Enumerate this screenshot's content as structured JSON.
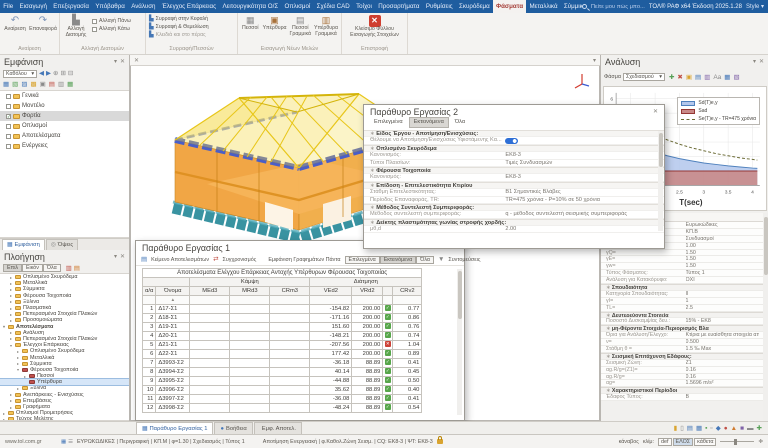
{
  "app": {
    "search_placeholder": "Πείτε μου πώς μπο...",
    "title": "ΤΟΛ® ΡΑΦ x64 Έκδοση 2025.1.28",
    "style_label": "Style ▾"
  },
  "menu": {
    "items": [
      {
        "t": "File"
      },
      {
        "t": "Εισαγωγή"
      },
      {
        "t": "Επεξεργασία"
      },
      {
        "t": "Υπόβαθρα"
      },
      {
        "t": "Ανάλυση"
      },
      {
        "t": "Έλεγχος Επάρκειας"
      },
      {
        "t": "Λειτουργικότητα Ο/Σ"
      },
      {
        "t": "Οπλισμοί"
      },
      {
        "t": "Σχέδια CAD"
      },
      {
        "t": "Τοίχοι"
      },
      {
        "t": "Προσαρτήματα"
      },
      {
        "t": "Ρυθμίσεις"
      },
      {
        "t": "Σκυρόδεμα"
      },
      {
        "t": "Φάσματα",
        "cls": "act"
      },
      {
        "t": "Μεταλλικά"
      },
      {
        "t": "Σύμμικτα"
      },
      {
        "t": "Ξύλινα"
      }
    ]
  },
  "ribbon": {
    "g1": "Αναίρεση",
    "undo": "Αναίρεση",
    "redo": "Επαναφορά",
    "g2": "Αλλαγή Διατομών",
    "big2": "Αλλαγή Διατομής",
    "chk_up": "Αλλαγή Πάνω",
    "chk_dn": "Αλλαγή Κάτω",
    "g3": "Συρραφή/Πεσσών",
    "stitch": [
      {
        "t": "Συρραφή στην Κεφαλή"
      },
      {
        "t": "Συρραφή & Θεμελίωση"
      },
      {
        "t": "Κλειδιά και στο πέρας",
        "cls": "dim"
      }
    ],
    "g4": "Εισαγωγή Νέων Μελών",
    "members": [
      {
        "t": "Πεσσοί",
        "ic": "▦",
        "icls": "ic-gr"
      },
      {
        "t": "Υπέρθυρα",
        "ic": "▣",
        "icls": "ic-br"
      },
      {
        "t": "Πεσσοί Γραμμικά",
        "ic": "▤",
        "icls": "ic-gr"
      },
      {
        "t": "Υπέρθυρα Γραμμικά",
        "ic": "▥",
        "icls": "ic-br"
      }
    ],
    "g5": "Επιστροφή",
    "close_label": "Κλείσιμο Φύλλου Εισαγωγής Στοιχείων"
  },
  "display_panel": {
    "title": "Εμφάνιση",
    "filter_value": "Καθόλου",
    "tb1_icons": [
      {
        "g": "◀",
        "cls": "ic-b"
      },
      {
        "g": "▶",
        "cls": "ic-b"
      },
      {
        "g": "⊕",
        "cls": "ic-gr"
      },
      {
        "g": "⊞",
        "cls": "ic-gr"
      },
      {
        "g": "⊟",
        "cls": "ic-gr"
      }
    ],
    "tb2_icons": [
      {
        "g": "▦",
        "cls": "ic-b"
      },
      {
        "g": "▧",
        "cls": "ic-g"
      },
      {
        "g": "▨",
        "cls": "ic-b"
      },
      {
        "g": "▩",
        "cls": "ic-y"
      },
      {
        "g": "▣",
        "cls": "ic-gr"
      },
      {
        "g": "▤",
        "cls": "ic-r"
      },
      {
        "g": "▥",
        "cls": "ic-gr"
      },
      {
        "g": "▦",
        "cls": "ic-g"
      }
    ],
    "tree": [
      {
        "t": "Γενικά"
      },
      {
        "t": "Μοντέλο"
      },
      {
        "t": "Φορτία",
        "cls": "hl",
        "ck": "ck"
      },
      {
        "t": "Οπλισμοί"
      },
      {
        "t": "Αποτελέσματα"
      },
      {
        "t": "Ενέργειες"
      }
    ],
    "tabs": [
      {
        "t": "Εμφάνιση",
        "cls": "on",
        "ig": "▦",
        "icls": "ic-b"
      },
      {
        "t": "Όψεις",
        "ig": "◎",
        "icls": "ic-gr"
      }
    ]
  },
  "navigation_panel": {
    "title": "Πλοήγηση",
    "filters": [
      {
        "t": "Επιλ",
        "cls": "on"
      },
      {
        "t": "Εικόν"
      },
      {
        "t": "Όλα"
      }
    ],
    "tb_icons": [
      {
        "g": "▥",
        "cls": "ic-r"
      },
      {
        "g": "▤",
        "cls": "ic-o"
      }
    ],
    "tree": [
      {
        "a": "▸",
        "t": "Οπλισμένο Σκυρόδεμα",
        "cls": "d1"
      },
      {
        "a": "▸",
        "t": "Μεταλλικά",
        "cls": "d1"
      },
      {
        "a": "▸",
        "t": "Σύμμικτα",
        "cls": "d1"
      },
      {
        "a": "▸",
        "t": "Φέρουσα Τοιχοποιία",
        "cls": "d1"
      },
      {
        "a": "▸",
        "t": "Ξύλινα",
        "cls": "d1"
      },
      {
        "a": "▸",
        "t": "Πλασματικά",
        "cls": "d1"
      },
      {
        "a": "▸",
        "t": "Πεπερασμένα Στοιχεία Πλακών",
        "cls": "d1"
      },
      {
        "a": "▸",
        "t": "Προσομοιώματα",
        "cls": "d1"
      },
      {
        "a": "▾",
        "t": "Αποτελέσματα",
        "cls": "d0 bld"
      },
      {
        "a": "▸",
        "t": "Ανάλυση",
        "cls": "d1"
      },
      {
        "a": "▸",
        "t": "Πεπερασμένα Στοιχεία Πλακών",
        "cls": "d1"
      },
      {
        "a": "▾",
        "t": "Έλεγχοι Επάρκειας",
        "cls": "d1"
      },
      {
        "a": "▸",
        "t": "Οπλισμένο Σκυρόδεμα",
        "cls": "d2"
      },
      {
        "a": "▸",
        "t": "Μεταλλικά",
        "cls": "d2"
      },
      {
        "a": "▸",
        "t": "Σύμμικτα",
        "cls": "d2"
      },
      {
        "a": "▾",
        "t": "Φέρουσα Τοιχοποιία",
        "cls": "d2",
        "fcls": "red"
      },
      {
        "a": "▸",
        "t": "Πεσσοί",
        "cls": "d3",
        "fcls": "red"
      },
      {
        "a": "",
        "t": "Υπέρθυρα",
        "cls": "d3 sel",
        "fcls": "red"
      },
      {
        "a": "▸",
        "t": "Ξύλινα",
        "cls": "d2"
      },
      {
        "a": "▸",
        "t": "Ανεπάρκειες - Ενισχύσεις",
        "cls": "d1"
      },
      {
        "a": "▸",
        "t": "Επεμβάσεις",
        "cls": "d1"
      },
      {
        "a": "▸",
        "t": "Γραφήματα",
        "cls": "d1"
      },
      {
        "a": "▸",
        "t": "Οπλισμοί Προμετρήσεις",
        "cls": "d0"
      },
      {
        "a": "▸",
        "t": "Τεύχος Μελέτης",
        "cls": "d0"
      }
    ]
  },
  "window2": {
    "title": "Παράθυρο Εργασίας 2",
    "tabs": [
      {
        "t": "Επιλεγμένα"
      },
      {
        "t": "Εκτεινόμενα",
        "cls": "on"
      },
      {
        "t": "Όλα"
      }
    ],
    "rows": [
      {
        "l": "Είδος Έργου - Αποτίμηση/Ενισχύσεις:",
        "v": "",
        "cls": "sec"
      },
      {
        "l": "Θέλουμε να Αποτίμηση/Ενισχύσεις Υφιστάμενης Κα...",
        "v": "",
        "cls": "tgl"
      },
      {
        "l": "Οπλισμένο Σκυρόδεμα",
        "v": "",
        "cls": "sec"
      },
      {
        "l": "Κανονισμός:",
        "v": "ΕΚ8-3"
      },
      {
        "l": "Τύποι Πλαισίων:",
        "v": "Τιμές Συνδυασμών"
      },
      {
        "l": "Φέρουσα Τοιχοποιία",
        "v": "",
        "cls": "sec"
      },
      {
        "l": "Κανονισμός:",
        "v": "ΕΚ8-3"
      },
      {
        "l": "Επίδοση - Επιτελεστικότητα Κτιρίου",
        "v": "",
        "cls": "sec"
      },
      {
        "l": "Στάθμη Επιτελεστικότητας:",
        "v": "Β1 Σημαντικές Βλάβες"
      },
      {
        "l": "Περίοδος Επαναφοράς, TR:",
        "v": "TR=475 χρόνια - P=10% σε 50 χρόνια"
      },
      {
        "l": "Μέθοδος Συντελεστή Συμπεριφοράς:",
        "v": "",
        "cls": "sec"
      },
      {
        "l": "Μέθοδος συντελεστή συμπεριφοράς:",
        "v": "q - μέθοδος συντελεστή σεισμικής συμπεριφοράς"
      },
      {
        "l": "Δείκτης πλαστιμότητας γωνίας στροφής χορδής:",
        "v": "",
        "cls": "sec"
      },
      {
        "l": "μθ,d",
        "v": "2.00"
      }
    ]
  },
  "window1": {
    "title": "Παράθυρο Εργασίας 1",
    "toolbar": {
      "results": "Κείμενο Αποτελεσμάτων",
      "sync": "Συγχρονισμός",
      "always": "Εμφάνιση Γραφημάτων Πάντα",
      "shortcuts": "Συντομεύσεις"
    },
    "tabs": [
      {
        "t": "Επιλεγμένα"
      },
      {
        "t": "Εκτεινόμενα",
        "cls": "on"
      },
      {
        "t": "Όλα"
      }
    ],
    "table": {
      "title": "Αποτελέσματα Ελέγχου Επάρκειας Αντοχής Υπέρθυρων Φέρουσας Τοιχοποιίας",
      "g1": "Κάμψη",
      "g2": "Διάτμηση",
      "h": [
        "α/α",
        "Όνομα",
        "MEd3",
        "MRd3",
        "CRm3",
        "VEd2",
        "VRd2",
        "",
        "CRv2"
      ],
      "sort": "▲",
      "rows": [
        {
          "n": "1",
          "name": "Δ17-Σ1",
          "ved": "-154.82",
          "vrd": "200.00",
          "st": "ok",
          "stg": "✓",
          "crv": "0.77"
        },
        {
          "n": "2",
          "name": "Δ18-Σ1",
          "ved": "-171.16",
          "vrd": "200.00",
          "st": "ok",
          "stg": "✓",
          "crv": "0.86"
        },
        {
          "n": "3",
          "name": "Δ19-Σ1",
          "ved": "151.60",
          "vrd": "200.00",
          "st": "ok",
          "stg": "✓",
          "crv": "0.76"
        },
        {
          "n": "4",
          "name": "Δ20-Σ1",
          "ved": "-148.21",
          "vrd": "200.00",
          "st": "ok",
          "stg": "✓",
          "crv": "0.74"
        },
        {
          "n": "5",
          "name": "Δ21-Σ1",
          "ved": "-207.56",
          "vrd": "200.00",
          "st": "fail",
          "stg": "✕",
          "crv": "1.04"
        },
        {
          "n": "6",
          "name": "Δ22-Σ1",
          "ved": "177.42",
          "vrd": "200.00",
          "st": "ok",
          "stg": "✓",
          "crv": "0.89"
        },
        {
          "n": "7",
          "name": "Δ3993-Σ2",
          "ved": "-36.18",
          "vrd": "88.89",
          "st": "ok",
          "stg": "✓",
          "crv": "0.41"
        },
        {
          "n": "8",
          "name": "Δ3994-Σ2",
          "ved": "40.14",
          "vrd": "88.89",
          "st": "ok",
          "stg": "✓",
          "crv": "0.45"
        },
        {
          "n": "9",
          "name": "Δ3995-Σ2",
          "ved": "-44.88",
          "vrd": "88.89",
          "st": "ok",
          "stg": "✓",
          "crv": "0.50"
        },
        {
          "n": "10",
          "name": "Δ3996-Σ2",
          "ved": "35.62",
          "vrd": "88.89",
          "st": "ok",
          "stg": "✓",
          "crv": "0.40"
        },
        {
          "n": "11",
          "name": "Δ3997-Σ2",
          "ved": "-36.08",
          "vrd": "88.89",
          "st": "ok",
          "stg": "✓",
          "crv": "0.41"
        },
        {
          "n": "12",
          "name": "Δ3998-Σ2",
          "ved": "-48.24",
          "vrd": "88.89",
          "st": "ok",
          "stg": "✓",
          "crv": "0.54"
        }
      ]
    }
  },
  "analysis_panel": {
    "title": "Ανάλυση",
    "toolbar": {
      "label": "Φάσμα",
      "value": "Σχεδιασμού"
    },
    "tb_icons": [
      {
        "g": "✚",
        "cls": "ic-g"
      },
      {
        "g": "✖",
        "cls": "ic-r"
      },
      {
        "g": "▣",
        "cls": "ic-y"
      },
      {
        "g": "▤",
        "cls": "ic-b"
      },
      {
        "g": "▥",
        "cls": "ic-p"
      },
      {
        "g": "Aa",
        "cls": "ic-gr"
      },
      {
        "g": "▦",
        "cls": "ic-b"
      },
      {
        "g": "▧",
        "cls": "ic-p"
      }
    ],
    "legend": [
      {
        "sw": "sw-b",
        "t": "Sd(T)e,y"
      },
      {
        "sw": "sw-r",
        "t": "Sad"
      },
      {
        "sw": "sw-d",
        "t": "Se(T)e,y - TR=475 χρόνια"
      }
    ],
    "chart": {
      "type": "line",
      "xlabel": "T(sec)",
      "xmin": 1.2,
      "xmax": 4.15,
      "ymax": 6.4,
      "xticks": [
        1.5,
        2,
        2.5,
        3,
        3.5,
        4
      ],
      "yticks": [
        2,
        4,
        6
      ],
      "grid_y": [
        1,
        2,
        3,
        4,
        5,
        6
      ],
      "series": [
        {
          "name": "Sd(T)e,y",
          "color": "#4f81bd",
          "fill": "#b3c7ec",
          "op": 0.85,
          "T": [
            1.25,
            1.5,
            1.75,
            2,
            2.25,
            2.5,
            2.75,
            3,
            3.25,
            3.5,
            3.75,
            4,
            4.1
          ],
          "v": [
            3.3,
            2.9,
            2.55,
            2.3,
            2.05,
            1.85,
            1.7,
            1.55,
            1.45,
            1.35,
            1.27,
            1.2,
            1.18
          ]
        },
        {
          "name": "Sad",
          "color": "#953735",
          "fill": "#c98a88",
          "op": 0.9,
          "T": [
            1.25,
            1.5,
            1.75,
            2,
            2.25,
            2.5,
            2.75,
            3,
            3.25,
            3.5,
            3.75,
            4,
            4.1
          ],
          "v": [
            1.0,
            1.0,
            1.0,
            1.0,
            1.0,
            1.0,
            1.0,
            1.0,
            1.0,
            1.0,
            1.0,
            1.0,
            1.0
          ]
        },
        {
          "name": "Se(T)e,y - TR=475 χρόνια",
          "color": "#6b6b35",
          "dash": "3 2",
          "T": [
            1.25,
            1.5,
            1.75,
            2,
            2.25,
            2.5,
            2.75,
            3,
            3.25,
            3.5,
            3.75,
            4,
            4.1
          ],
          "v": [
            5.0,
            4.4,
            3.9,
            3.5,
            3.15,
            2.85,
            2.6,
            2.4,
            2.2,
            2.05,
            1.9,
            1.8,
            1.75
          ]
        }
      ]
    },
    "props_header": "Τιμή",
    "props": [
      {
        "l": "Κανονισμοί:",
        "v": "Ευρωκώδικες"
      },
      {
        "l": "Κατηγορία:",
        "v": "ΚΠ.Β"
      },
      {
        "l": "Συνδυασμοί:",
        "v": "Συνδυασμοί"
      },
      {
        "l": "γG=",
        "v": "1.00"
      },
      {
        "l": "γQ=",
        "v": "1.50"
      },
      {
        "l": "γE=",
        "v": "1.50"
      },
      {
        "l": "γw=",
        "v": "1.50"
      },
      {
        "l": "Τύπος Φάσματος:",
        "v": "Τύπος 1"
      },
      {
        "l": "Ανάλυση για Κατακόρυφο:",
        "v": "ΟΧΙ"
      },
      {
        "l": "Σπουδαιότητα",
        "v": "",
        "cls": "sec"
      },
      {
        "l": "Κατηγορία Σπουδαιότητας:",
        "v": "ΙΙ"
      },
      {
        "l": "γI=",
        "v": "1"
      },
      {
        "l": "TL=",
        "v": "2.5"
      },
      {
        "l": "Δευτερεύοντα Στοιχεία",
        "v": "",
        "cls": "sec"
      },
      {
        "l": "Ποσοστό Δυσκαμψίας δευ.:",
        "v": "15% - ΕΚ8"
      },
      {
        "l": "μη-Φέροντα Στοιχεία-Περιορισμός Βλαβών",
        "v": "",
        "cls": "sec"
      },
      {
        "l": "Όρια για Ανάλυση/Έλεγχο:",
        "v": "Κτίρια με ευαίσθητα στοιχεία από Βλάβ."
      },
      {
        "l": "ν=",
        "v": "0.500"
      },
      {
        "l": "Στάθμη θ =",
        "v": "1.5 ‰ Max"
      },
      {
        "l": "Σεισμική Επιτάχυνση Εδάφους:",
        "v": "",
        "cls": "sec"
      },
      {
        "l": "Σεισμική Ζώνη:",
        "v": "Ζ1"
      },
      {
        "l": "αg.R/g=(Ζ1)=",
        "v": "0.16"
      },
      {
        "l": "αg.R/g=",
        "v": "0.16"
      },
      {
        "l": "αg=",
        "v": "1.5696 m/s²"
      },
      {
        "l": "Χαρακτηριστικοί Περίοδοι",
        "v": "",
        "cls": "sec"
      },
      {
        "l": "Έδαφος Τύπος:",
        "v": "Β"
      }
    ]
  },
  "bottom": {
    "tabs": [
      {
        "t": "Παράθυρο Εργασίας 1",
        "cls": "on",
        "ig": "▦",
        "icls": "ic-b"
      },
      {
        "t": "Βοήθεια",
        "ig": "●",
        "icls": "ic-b"
      },
      {
        "t": "Εμφ. Αποτελ.",
        "ig": "",
        "icls": ""
      }
    ],
    "icons": [
      {
        "g": "▮",
        "cls": "ic-y"
      },
      {
        "g": "▯",
        "cls": "ic-gr"
      },
      {
        "g": "▤",
        "cls": "ic-b"
      },
      {
        "g": "▦",
        "cls": "ic-b"
      },
      {
        "g": "▪",
        "cls": "ic-g"
      },
      {
        "g": "▫",
        "cls": "ic-gr"
      },
      {
        "g": "◆",
        "cls": "ic-b"
      },
      {
        "g": "●",
        "cls": "ic-r"
      },
      {
        "g": "▲",
        "cls": "ic-o"
      },
      {
        "g": "■",
        "cls": "ic-p"
      },
      {
        "g": "▬",
        "cls": "ic-gr"
      },
      {
        "g": "✚",
        "cls": "ic-g"
      }
    ]
  },
  "status": {
    "site": "www.tol.com.gr",
    "icons": [
      {
        "g": "▦",
        "cls": "ic-b"
      },
      {
        "g": "☰",
        "cls": "ic-gr"
      }
    ],
    "design": "ΕΥΡΩΚΩΔΙΚΕΣ | Περιγραφική | ΚΠ.Μ | φ=1.30 | Σχεδιασμός | Τύπος 1",
    "assess": "Αποτίμηση Ενεργειακή | φ.Καθολ.Ζώνη Σεισμ. | CQ: ΕΚ8-3 | ΨΤ: ΕΚ8-3",
    "grid_label": "κάναβος",
    "scale_label": "κλίμ:",
    "toggles": [
      {
        "t": "def"
      },
      {
        "t": "ΕΛΟΣ",
        "cls": "on"
      },
      {
        "t": "κάθετα"
      }
    ]
  },
  "colors": {
    "menubar": "#1f5d9f",
    "active_tab_text": "#a5403a",
    "ok": "#57a64a",
    "fail": "#cc4136",
    "model_wall": "#f0a038",
    "model_roof": "#f2d835",
    "model_base": "#2e8d9c",
    "model_lintel": "#4a5ec8",
    "spectrum_blue": "#4f81bd",
    "spectrum_red": "#953735",
    "spectrum_dash": "#6b6b35"
  }
}
